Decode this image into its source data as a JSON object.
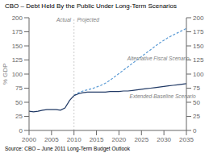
{
  "chart_data": {
    "type": "line",
    "title": "CBO – Debt Held By the Public Under Long-Term Scenarios",
    "y_label": "% GDP",
    "source": "Source:  CBO – June 2011 Long-Term Budget Outlook",
    "xlim": [
      2000,
      2035
    ],
    "xticks": [
      2000,
      2005,
      2010,
      2015,
      2020,
      2025,
      2030,
      2035
    ],
    "ylim": [
      0,
      200
    ],
    "yticks": [
      0,
      25,
      50,
      75,
      100,
      125,
      150,
      175,
      200
    ],
    "y2lim": [
      0,
      200
    ],
    "y2ticks": [
      0,
      25,
      50,
      75,
      100,
      125,
      150,
      175,
      200
    ],
    "vline": 2010,
    "annotations": [
      {
        "text": "Actual",
        "x": 2009.7,
        "y": 196
      },
      {
        "text": "Projected",
        "x": 2010.3,
        "y": 196
      },
      {
        "text": "Alternative Fiscal Scenario",
        "x": 2021.5,
        "y": 128
      },
      {
        "text": "Extended-Baseline Scenario",
        "x": 2022,
        "y": 60
      }
    ],
    "series": [
      {
        "color": "#1f3864",
        "line_style": "solid",
        "x": [
          2000,
          2001,
          2002,
          2003,
          2004,
          2005,
          2006,
          2007,
          2008,
          2009,
          2010
        ],
        "values": [
          34,
          33,
          34,
          36,
          37,
          37,
          37,
          36,
          40,
          53,
          62
        ]
      },
      {
        "color": "#5b9bd5",
        "line_style": "dashed",
        "x": [
          2010,
          2011,
          2012,
          2013,
          2014,
          2015,
          2016,
          2017,
          2018,
          2019,
          2020,
          2021,
          2022,
          2023,
          2024,
          2025,
          2026,
          2027,
          2028,
          2029,
          2030,
          2031,
          2032,
          2033,
          2034,
          2035
        ],
        "values": [
          62,
          67,
          70,
          72,
          74,
          77,
          80,
          84,
          89,
          95,
          101,
          107,
          113,
          119,
          125,
          131,
          137,
          143,
          149,
          155,
          160,
          165,
          169,
          173,
          177,
          181
        ]
      },
      {
        "color": "#1f3864",
        "line_style": "solid",
        "x": [
          2010,
          2011,
          2012,
          2013,
          2014,
          2015,
          2016,
          2017,
          2018,
          2019,
          2020,
          2021,
          2022,
          2023,
          2024,
          2025,
          2026,
          2027,
          2028,
          2029,
          2030,
          2031,
          2032,
          2033,
          2034,
          2035
        ],
        "values": [
          62,
          65,
          67,
          68,
          68,
          68,
          68,
          68,
          69,
          69,
          69,
          70,
          70,
          71,
          72,
          73,
          74,
          75,
          76,
          77,
          78,
          79,
          80,
          81,
          82,
          83
        ]
      }
    ]
  }
}
